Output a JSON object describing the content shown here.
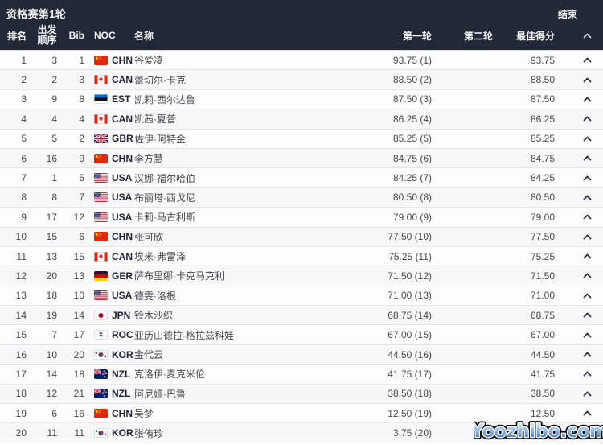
{
  "header": {
    "title": "资格赛第1轮",
    "status": "结束"
  },
  "columns": {
    "rank": "排名",
    "start_order_line1": "出发",
    "start_order_line2": "顺序",
    "bib": "Bib",
    "noc": "NOC",
    "name": "名称",
    "round1": "第一轮",
    "round2": "第二轮",
    "best": "最佳得分",
    "collapse_icon": "chevron-up-icon"
  },
  "rows": [
    {
      "rank": "1",
      "start": "3",
      "bib": "1",
      "noc": "CHN",
      "flag": "flag-chn-icon",
      "name": "谷爱凌",
      "round1": "93.75 (1)",
      "round2": "",
      "best": "93.75"
    },
    {
      "rank": "2",
      "start": "2",
      "bib": "3",
      "noc": "CAN",
      "flag": "flag-can-icon",
      "name": "蕾切尔·卡克",
      "round1": "88.50 (2)",
      "round2": "",
      "best": "88.50"
    },
    {
      "rank": "3",
      "start": "9",
      "bib": "8",
      "noc": "EST",
      "flag": "flag-est-icon",
      "name": "凯莉·西尔达鲁",
      "round1": "87.50 (3)",
      "round2": "",
      "best": "87.50"
    },
    {
      "rank": "4",
      "start": "4",
      "bib": "4",
      "noc": "CAN",
      "flag": "flag-can-icon",
      "name": "凯茜·夏普",
      "round1": "86.25 (4)",
      "round2": "",
      "best": "86.25"
    },
    {
      "rank": "5",
      "start": "5",
      "bib": "2",
      "noc": "GBR",
      "flag": "flag-gbr-icon",
      "name": "佐伊·阿特金",
      "round1": "85.25 (5)",
      "round2": "",
      "best": "85.25"
    },
    {
      "rank": "6",
      "start": "16",
      "bib": "9",
      "noc": "CHN",
      "flag": "flag-chn-icon",
      "name": "李方慧",
      "round1": "84.75 (6)",
      "round2": "",
      "best": "84.75"
    },
    {
      "rank": "7",
      "start": "1",
      "bib": "5",
      "noc": "USA",
      "flag": "flag-usa-icon",
      "name": "汉娜·福尔哈伯",
      "round1": "84.25 (7)",
      "round2": "",
      "best": "84.25"
    },
    {
      "rank": "8",
      "start": "8",
      "bib": "7",
      "noc": "USA",
      "flag": "flag-usa-icon",
      "name": "布丽塔·西戈尼",
      "round1": "80.50 (8)",
      "round2": "",
      "best": "80.50"
    },
    {
      "rank": "9",
      "start": "17",
      "bib": "12",
      "noc": "USA",
      "flag": "flag-usa-icon",
      "name": "卡莉·马古利斯",
      "round1": "79.00 (9)",
      "round2": "",
      "best": "79.00"
    },
    {
      "rank": "10",
      "start": "15",
      "bib": "6",
      "noc": "CHN",
      "flag": "flag-chn-icon",
      "name": "张可欣",
      "round1": "77.50 (10)",
      "round2": "",
      "best": "77.50"
    },
    {
      "rank": "11",
      "start": "13",
      "bib": "15",
      "noc": "CAN",
      "flag": "flag-can-icon",
      "name": "埃米·弗雷泽",
      "round1": "75.25 (11)",
      "round2": "",
      "best": "75.25"
    },
    {
      "rank": "12",
      "start": "20",
      "bib": "13",
      "noc": "GER",
      "flag": "flag-ger-icon",
      "name": "萨布里娜·卡克马克利",
      "round1": "71.50 (12)",
      "round2": "",
      "best": "71.50"
    },
    {
      "rank": "13",
      "start": "18",
      "bib": "10",
      "noc": "USA",
      "flag": "flag-usa-icon",
      "name": "德雯·洛根",
      "round1": "71.00 (13)",
      "round2": "",
      "best": "71.00"
    },
    {
      "rank": "14",
      "start": "19",
      "bib": "14",
      "noc": "JPN",
      "flag": "flag-jpn-icon",
      "name": "铃木沙织",
      "round1": "68.75 (14)",
      "round2": "",
      "best": "68.75"
    },
    {
      "rank": "15",
      "start": "7",
      "bib": "17",
      "noc": "ROC",
      "flag": "flag-roc-icon",
      "name": "亚历山德拉·格拉兹科娃",
      "round1": "67.00 (15)",
      "round2": "",
      "best": "67.00"
    },
    {
      "rank": "16",
      "start": "10",
      "bib": "20",
      "noc": "KOR",
      "flag": "flag-kor-icon",
      "name": "金代云",
      "round1": "44.50 (16)",
      "round2": "",
      "best": "44.50"
    },
    {
      "rank": "17",
      "start": "14",
      "bib": "18",
      "noc": "NZL",
      "flag": "flag-nzl-icon",
      "name": "克洛伊·麦克米伦",
      "round1": "41.75 (17)",
      "round2": "",
      "best": "41.75"
    },
    {
      "rank": "18",
      "start": "12",
      "bib": "21",
      "noc": "NZL",
      "flag": "flag-nzl-icon",
      "name": "阿尼娅·巴鲁",
      "round1": "38.50 (18)",
      "round2": "",
      "best": "38.50"
    },
    {
      "rank": "19",
      "start": "6",
      "bib": "16",
      "noc": "CHN",
      "flag": "flag-chn-icon",
      "name": "吴梦",
      "round1": "12.50 (19)",
      "round2": "",
      "best": "12.50"
    },
    {
      "rank": "20",
      "start": "11",
      "bib": "11",
      "noc": "KOR",
      "flag": "flag-kor-icon",
      "name": "张侑珍",
      "round1": "3.75 (20)",
      "round2": "",
      "best": "3.75"
    }
  ],
  "watermark": {
    "text": "Yoozhibo.com"
  },
  "colors": {
    "header_bg": "#232837",
    "header_text": "#f1f2f6",
    "row_text": "#46494f",
    "noc_text": "#20243a",
    "row_border": "#e4e4e9",
    "chevron": "#272c3f",
    "watermark_blue": "#2c5a9e"
  }
}
